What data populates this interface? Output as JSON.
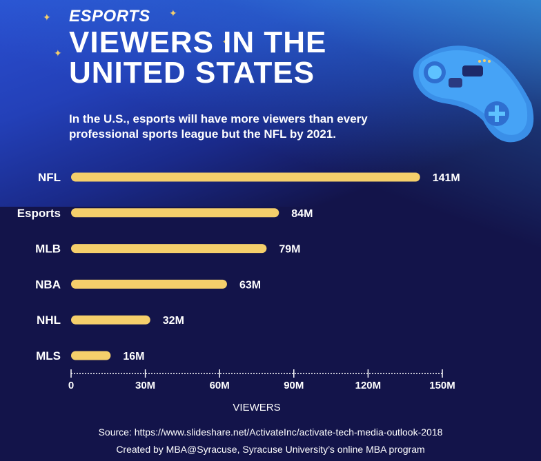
{
  "header": {
    "kicker": "ESPORTS",
    "title": "VIEWERS IN THE UNITED STATES",
    "subtitle": "In the U.S., esports will have more viewers than every professional sports league but the NFL by 2021."
  },
  "chart_data": {
    "type": "bar",
    "orientation": "horizontal",
    "categories": [
      "NFL",
      "Esports",
      "MLB",
      "NBA",
      "NHL",
      "MLS"
    ],
    "values": [
      141,
      84,
      79,
      63,
      32,
      16
    ],
    "value_labels": [
      "141M",
      "84M",
      "79M",
      "63M",
      "32M",
      "16M"
    ],
    "xlabel": "VIEWERS",
    "xlim": [
      0,
      150
    ],
    "xticks": [
      0,
      30,
      60,
      90,
      120,
      150
    ],
    "xtick_labels": [
      "0",
      "30M",
      "60M",
      "90M",
      "120M",
      "150M"
    ],
    "grid": false,
    "bar_color": "#f5cf6b"
  },
  "footer": {
    "source": "Source: https://www.slideshare.net/ActivateInc/activate-tech-media-outlook-2018",
    "credit": "Created by MBA@Syracuse, Syracuse University’s online MBA program"
  },
  "colors": {
    "background": "#13144a",
    "accent": "#f5cf6b",
    "header_blue": "#2a4fd0"
  },
  "icons": [
    "sparkle-icon",
    "game-controller-icon"
  ]
}
